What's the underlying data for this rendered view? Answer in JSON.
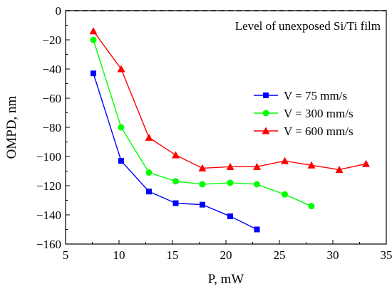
{
  "chart_data": {
    "type": "line",
    "xlabel": "P, mW",
    "ylabel": "OMPD, nm",
    "xlim": [
      5,
      35
    ],
    "ylim": [
      -160,
      0
    ],
    "xticks": [
      5,
      10,
      15,
      20,
      25,
      30,
      35
    ],
    "yticks": [
      -160,
      -140,
      -120,
      -100,
      -80,
      -60,
      -40,
      -20,
      0
    ],
    "grid": false,
    "legend_position": "center-right",
    "annotation": {
      "text": "Level of unexposed Si/Ti film",
      "y": 0
    },
    "series": [
      {
        "name": "V = 75 mm/s",
        "color": "#0000ff",
        "marker": "square",
        "x": [
          7.6,
          10.2,
          12.8,
          15.3,
          17.8,
          20.4,
          22.9
        ],
        "y": [
          -43,
          -103,
          -124,
          -132,
          -133,
          -141,
          -150
        ]
      },
      {
        "name": "V = 300 mm/s",
        "color": "#00ff00",
        "marker": "circle",
        "x": [
          7.6,
          10.2,
          12.8,
          15.3,
          17.8,
          20.4,
          22.9,
          25.5,
          28.0
        ],
        "y": [
          -20,
          -80,
          -111,
          -117,
          -119,
          -118,
          -119,
          -126,
          -134
        ]
      },
      {
        "name": "V = 600 mm/s",
        "color": "#ff0000",
        "marker": "triangle",
        "x": [
          7.6,
          10.2,
          12.8,
          15.3,
          17.8,
          20.4,
          22.9,
          25.5,
          28.0,
          30.6,
          33.1
        ],
        "y": [
          -14,
          -40,
          -87,
          -99,
          -108,
          -107,
          -107,
          -103,
          -106,
          -109,
          -105
        ]
      }
    ]
  }
}
